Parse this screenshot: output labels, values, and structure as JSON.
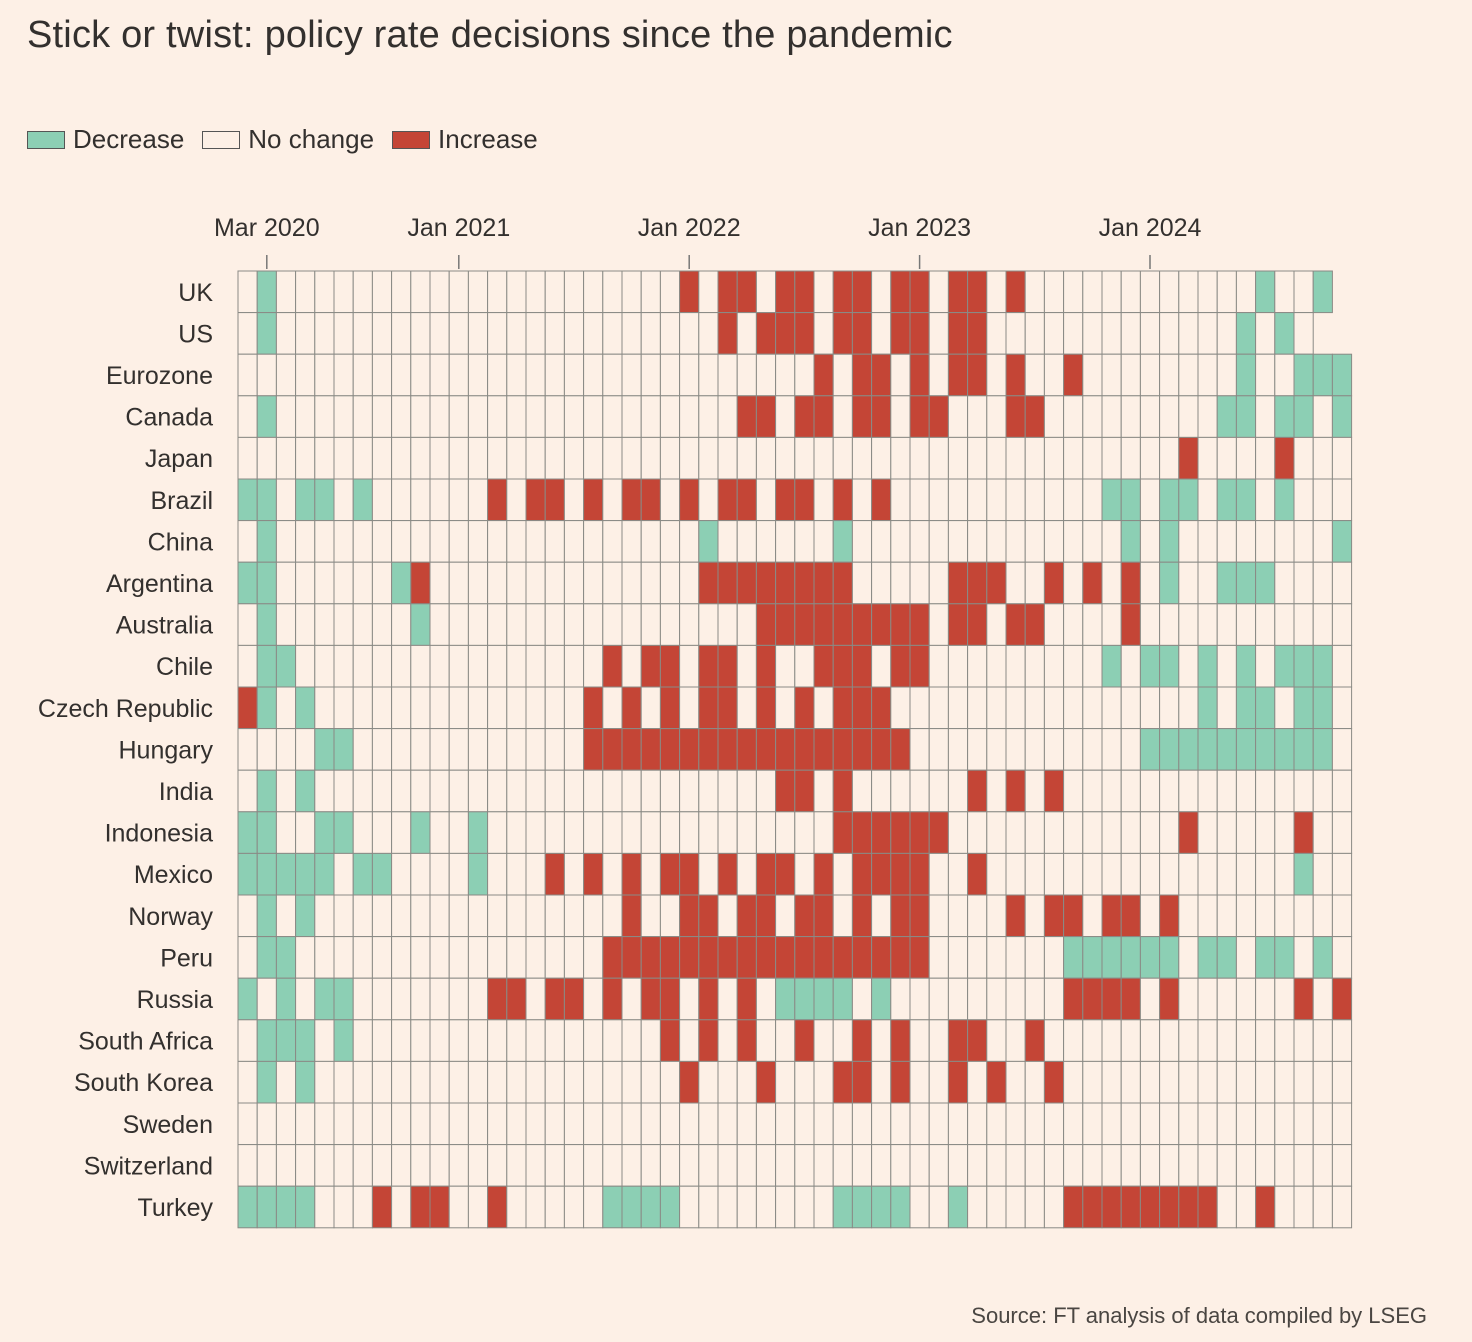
{
  "title": "Stick or twist: policy rate decisions since the pandemic",
  "source": "Source: FT analysis of data compiled by LSEG",
  "legend": [
    {
      "label": "Decrease",
      "color": "#8ccfb4"
    },
    {
      "label": "No change",
      "color": "#fdf0e6"
    },
    {
      "label": "Increase",
      "color": "#c44536"
    }
  ],
  "chart_data": {
    "type": "heatmap",
    "start_month": "Feb 2020",
    "end_month": "Sep 2024",
    "value_key": {
      "D": "Decrease",
      "N": "No change",
      "I": "Increase"
    },
    "x_ticks": [
      {
        "label": "Mar 2020",
        "month_index": 1
      },
      {
        "label": "Jan 2021",
        "month_index": 11
      },
      {
        "label": "Jan 2022",
        "month_index": 23
      },
      {
        "label": "Jan 2023",
        "month_index": 35
      },
      {
        "label": "Jan 2024",
        "month_index": 47
      }
    ],
    "rows": [
      {
        "name": "UK",
        "cells": "NDNNNNNNNNNNNNNNNNNNNNNIN IINIINIINIINIININNNNNNNNNNNNDNND"
      },
      {
        "name": "US",
        "cells": "NDNNNNNNNNNNNNNNNNNNNNNNN INIIINIINIINIINNNNNNNNNNNNNDNDN"
      },
      {
        "name": "Eurozone",
        "cells": "NNNNNNNNNNNNNNNNNNNNNNNNN NNNNNINIININIININNINNNNNNNNDNNDDD"
      },
      {
        "name": "Canada",
        "cells": "NDNNNNNNNNNNNNNNNNNNNNNNN NIINIINIINIINNNIINNNNNNNNNDDNDDND"
      },
      {
        "name": "Japan",
        "cells": "NNNNNNNNNNNNNNNNNNNNNNNNN NNNNNNNNNNNNNNNNNNNNNNNNINNNNINNNN"
      },
      {
        "name": "Brazil",
        "cells": "DDNDDNDNNNNNNINIININIININIINIINININNNNNNNNNNNDDNDDNDDNDNNNINII"
      },
      {
        "name": "China",
        "cells": "NDNNNNNNNNNNNNNNNNNNNNNNDNNNNNNDNNNNNNNNNNNNNNDNDNNNNNNNNDNDNNN"
      },
      {
        "name": "Argentina",
        "cells": "DDNNNNNNDINNNNNNNNNNNNNNIIIIIIIINNNNNIIINNINININDNNDDDNNNNNDD"
      },
      {
        "name": "Australia",
        "cells": "NDNNNNNNNDNNNNNNNNNNNNNNNNNIIIIIIIIINIINIINNNNINNNNNNNNNNNNNN"
      },
      {
        "name": "Chile",
        "cells": "NDDNNNNNNNNNNNNNNNNINIINIININNIIINIINNNNNNNNNDNDDNDNDNDDDNNDDN"
      },
      {
        "name": "Czech Republic",
        "cells": "IDNDNNNNNNNNNNNNNNINININIINININIIINNNNNNNNNNNNNNNNDNDDNDDNDDND"
      },
      {
        "name": "Hungary",
        "cells": "NNNNDDNNNNNNNNNNNNIIIIIIIIIIIIIIIIINNNNNNNNNNNNDDDDDDDDDDNDNNN"
      },
      {
        "name": "India",
        "cells": "NDNDNNNNNNNNNNNNNNNNNNNNNNNNIININNNNNNINININNNNNNNNNNNNNNNNNNNNN"
      },
      {
        "name": "Indonesia",
        "cells": "DDNNDDNNNDNNDNNNNNNNNNNNNNNNNNNIIIIIINNNNNNNNNNNNINNNNNINNNNDNN"
      },
      {
        "name": "Mexico",
        "cells": "DDDDDNDDNNNNDNNNINININIININIININIIIINNINNNNNNNNNNNNNNNNDNNNNDDND"
      },
      {
        "name": "Norway",
        "cells": "NDNDNNNNNNNNNNNNNNNNINNIINIINIININIINNNNINIINIININNNNNNNNNNNNN"
      },
      {
        "name": "Peru",
        "cells": "NDDNNNNNNNNNNNNNNNNIIIIIIIIIIIIIIIIINNNNNNNDDDDDDNDDNDDNDNNN"
      },
      {
        "name": "Russia",
        "cells": "DNDNDDNNNNNNNIINIININIINININDDDDNDNNNNNNNNNIIIININNNNNNINIINN"
      },
      {
        "name": "South Africa",
        "cells": "NDDDNDNNNNNNNNNNNNNNNNINININNINNININNIINNINNNNNNNNNNNNNNNNNNDND"
      },
      {
        "name": "South Korea",
        "cells": "NDNDNNNNNNNNNNNNNNNNNNNINNNINNNIININNININNINNNNNNNNNNNNNNNNNDDN"
      },
      {
        "name": "Sweden",
        "cells": "NNNNNNNNNNNNNNNNNNNNNNNNNNNNNNNNNNNNNNNNNNNNNNNNNNNNNNNNNNNNNN"
      },
      {
        "name": "Switzerland",
        "cells": "NNNNNNNNNNNNNNNNNNNNNNNNNNNNNNNNNNNNNNNNNNNNNNNNNNNNNNNNNNNNNN"
      },
      {
        "name": "Turkey",
        "cells": "DDDDNNNINIINNINNNNNDDDDNNNNNNNNDDDDNNDNNNNNIIIIIIIINNINNNNNNNNNN"
      }
    ]
  }
}
